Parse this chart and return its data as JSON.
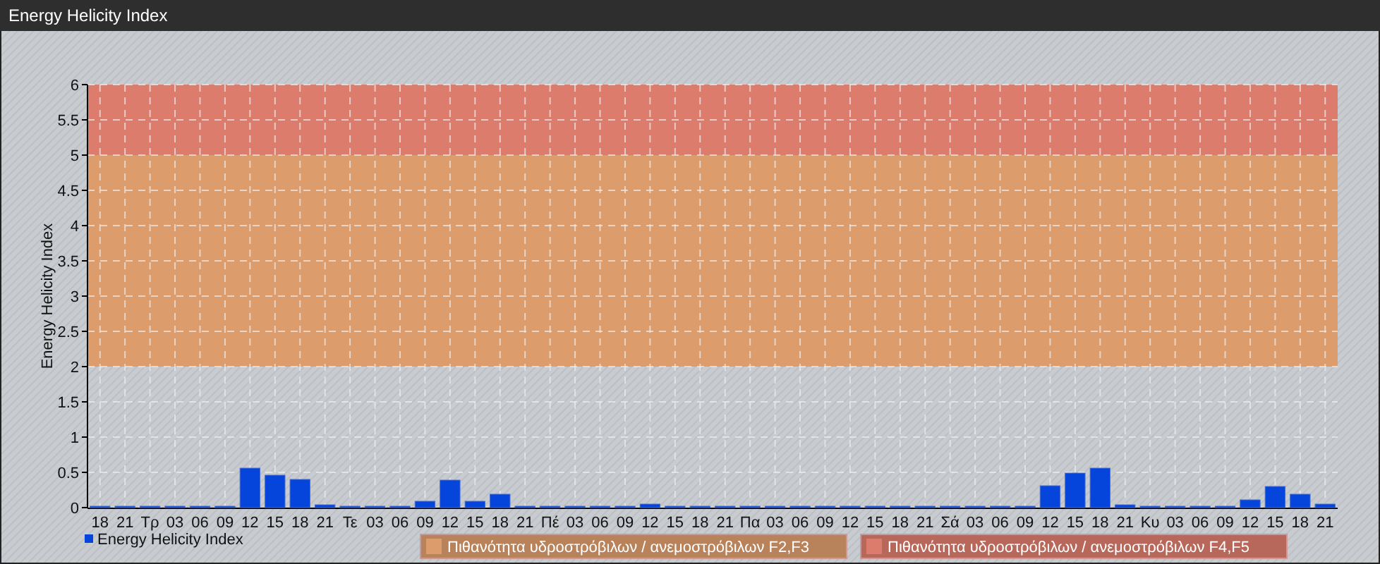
{
  "chart_data": {
    "type": "bar",
    "title": "Energy Helicity Index",
    "ylabel": "Energy Helicity Index",
    "categories": [
      "18",
      "21",
      "Τρ",
      "03",
      "06",
      "09",
      "12",
      "15",
      "18",
      "21",
      "Τε",
      "03",
      "06",
      "09",
      "12",
      "15",
      "18",
      "21",
      "Πέ",
      "03",
      "06",
      "09",
      "12",
      "15",
      "18",
      "21",
      "Πα",
      "03",
      "06",
      "09",
      "12",
      "15",
      "18",
      "21",
      "Σά",
      "03",
      "06",
      "09",
      "12",
      "15",
      "18",
      "21",
      "Κυ",
      "03",
      "06",
      "09",
      "12",
      "15",
      "18",
      "21"
    ],
    "series": [
      {
        "name": "Energy Helicity Index",
        "color": "#0545dc",
        "values": [
          0.02,
          0.02,
          0.02,
          0.02,
          0.02,
          0.02,
          0.56,
          0.46,
          0.4,
          0.04,
          0.02,
          0.02,
          0.02,
          0.09,
          0.39,
          0.09,
          0.19,
          0.02,
          0.02,
          0.02,
          0.02,
          0.02,
          0.05,
          0.02,
          0.02,
          0.02,
          0.02,
          0.02,
          0.02,
          0.02,
          0.02,
          0.02,
          0.02,
          0.02,
          0.02,
          0.02,
          0.02,
          0.02,
          0.31,
          0.49,
          0.56,
          0.04,
          0.02,
          0.02,
          0.02,
          0.02,
          0.11,
          0.3,
          0.19,
          0.05
        ]
      }
    ],
    "ylim": [
      0,
      6
    ],
    "yticks": [
      0,
      0.5,
      1,
      1.5,
      2,
      2.5,
      3,
      3.5,
      4,
      4.5,
      5,
      5.5,
      6
    ],
    "bands": [
      {
        "axis": "y",
        "from": 2,
        "to": 5,
        "label": "Πιθανότητα υδροστρόβιλων / ανεμοστρόβιλων F2,F3",
        "color": "#dc9c6c"
      },
      {
        "axis": "y",
        "from": 5,
        "to": 6,
        "label": "Πιθανότητα υδροστρόβιλων / ανεμοστρόβιλων F4,F5",
        "color": "#dc7c6c"
      }
    ],
    "grid": true,
    "legend": "bottom left"
  }
}
